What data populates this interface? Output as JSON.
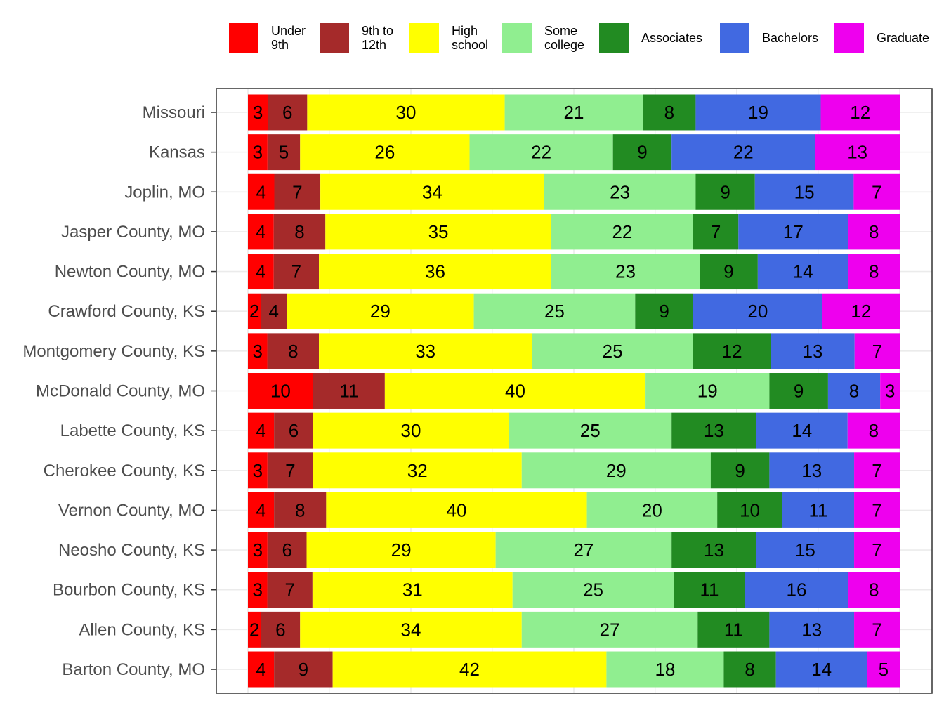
{
  "chart_data": {
    "type": "bar",
    "orientation": "horizontal",
    "stacked": true,
    "normalized": true,
    "title": "",
    "xlabel": "",
    "ylabel": "",
    "grid": true,
    "legend_position": "top",
    "categories": [
      "Missouri",
      "Kansas",
      "Joplin, MO",
      "Jasper County, MO",
      "Newton County, MO",
      "Crawford County, KS",
      "Montgomery County, KS",
      "McDonald County, MO",
      "Labette County, KS",
      "Cherokee County, KS",
      "Vernon County, MO",
      "Neosho County, KS",
      "Bourbon County, KS",
      "Allen County, KS",
      "Barton County, MO"
    ],
    "series": [
      {
        "name": "Under 9th",
        "legend_lines": [
          "Under",
          "9th"
        ],
        "color": "#ff0000",
        "values": [
          3,
          3,
          4,
          4,
          4,
          2,
          3,
          10,
          4,
          3,
          4,
          3,
          3,
          2,
          4
        ]
      },
      {
        "name": "9th to 12th",
        "legend_lines": [
          "9th to",
          "12th"
        ],
        "color": "#a52a2a",
        "values": [
          6,
          5,
          7,
          8,
          7,
          4,
          8,
          11,
          6,
          7,
          8,
          6,
          7,
          6,
          9
        ]
      },
      {
        "name": "High school",
        "legend_lines": [
          "High",
          "school"
        ],
        "color": "#ffff00",
        "values": [
          30,
          26,
          34,
          35,
          36,
          29,
          33,
          40,
          30,
          32,
          40,
          29,
          31,
          34,
          42
        ]
      },
      {
        "name": "Some college",
        "legend_lines": [
          "Some",
          "college"
        ],
        "color": "#90ee90",
        "values": [
          21,
          22,
          23,
          22,
          23,
          25,
          25,
          19,
          25,
          29,
          20,
          27,
          25,
          27,
          18
        ]
      },
      {
        "name": "Associates",
        "legend_lines": [
          "Associates"
        ],
        "color": "#228b22",
        "values": [
          8,
          9,
          9,
          7,
          9,
          9,
          12,
          9,
          13,
          9,
          10,
          13,
          11,
          11,
          8
        ]
      },
      {
        "name": "Bachelors",
        "legend_lines": [
          "Bachelors"
        ],
        "color": "#4169e1",
        "values": [
          19,
          22,
          15,
          17,
          14,
          20,
          13,
          8,
          14,
          13,
          11,
          15,
          16,
          13,
          14
        ]
      },
      {
        "name": "Graduate",
        "legend_lines": [
          "Graduate"
        ],
        "color": "#ee00ee",
        "values": [
          12,
          13,
          7,
          8,
          8,
          12,
          7,
          3,
          8,
          7,
          7,
          7,
          8,
          7,
          5
        ]
      }
    ]
  }
}
